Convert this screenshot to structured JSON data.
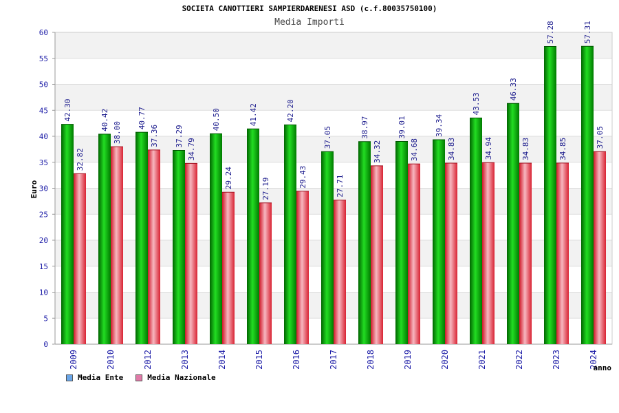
{
  "header": {
    "title": "SOCIETA CANOTTIERI SAMPIERDARENESI ASD (c.f.80035750100)",
    "subtitle": "Media Importi"
  },
  "chart_data": {
    "type": "bar",
    "title": "SOCIETA CANOTTIERI SAMPIERDARENESI ASD (c.f.80035750100)",
    "subtitle": "Media Importi",
    "xlabel": "anno",
    "ylabel": "Euro",
    "ylim": [
      0,
      60
    ],
    "yticks": [
      0,
      5,
      10,
      15,
      20,
      25,
      30,
      35,
      40,
      45,
      50,
      55,
      60
    ],
    "grid": true,
    "legend_position": "bottom-left",
    "categories": [
      "2009",
      "2010",
      "2012",
      "2013",
      "2014",
      "2015",
      "2016",
      "2017",
      "2018",
      "2019",
      "2020",
      "2021",
      "2022",
      "2023",
      "2024"
    ],
    "series": [
      {
        "name": "Media Ente",
        "color": "#00aa00",
        "legend_color": "#6aa6e8",
        "values": [
          42.3,
          40.42,
          40.77,
          37.29,
          40.5,
          41.42,
          42.2,
          37.05,
          38.97,
          39.01,
          39.34,
          43.53,
          46.33,
          57.28,
          57.31
        ],
        "labels": [
          "42.30",
          "40.42",
          "40.77",
          "37.29",
          "40.50",
          "41.42",
          "42.20",
          "37.05",
          "38.97",
          "39.01",
          "39.34",
          "43.53",
          "46.33",
          "57.28",
          "57.31"
        ]
      },
      {
        "name": "Media Nazionale",
        "color": "#e8404f",
        "legend_color": "#e07aa8",
        "values": [
          32.82,
          38.0,
          37.36,
          34.79,
          29.24,
          27.19,
          29.43,
          27.71,
          34.32,
          34.68,
          34.83,
          34.94,
          34.83,
          34.85,
          37.05
        ],
        "labels": [
          "32.82",
          "38.00",
          "37.36",
          "34.79",
          "29.24",
          "27.19",
          "29.43",
          "27.71",
          "34.32",
          "34.68",
          "34.83",
          "34.94",
          "34.83",
          "34.85",
          "37.05"
        ]
      }
    ],
    "colors": {
      "tick_label": "#1a1aa6",
      "data_label": "#1a1a8c",
      "band": "#f2f2f2",
      "grid": "#dddddd"
    }
  }
}
